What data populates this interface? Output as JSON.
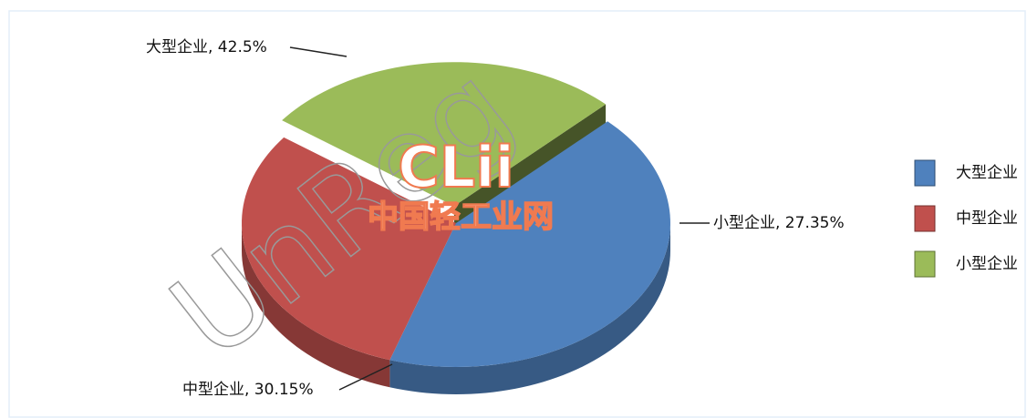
{
  "chart_data": {
    "type": "pie3d",
    "categories": [
      "大型企业",
      "中型企业",
      "小型企业"
    ],
    "values": [
      42.5,
      30.15,
      27.35
    ],
    "value_labels": [
      "大型企业, 42.5%",
      "中型企业, 30.15%",
      "小型企业, 27.35%"
    ],
    "colors": [
      "#4f81bd",
      "#c0504d",
      "#9bbb59"
    ],
    "exploded": [
      false,
      false,
      true
    ],
    "legend": "right",
    "annotations": [
      "UnReg",
      "CLii",
      "中国轻工业网"
    ]
  }
}
